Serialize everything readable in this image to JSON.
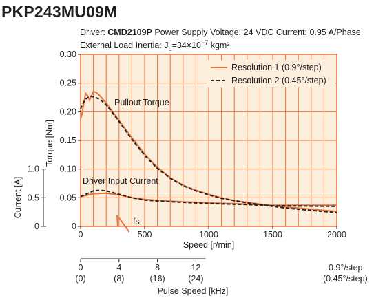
{
  "header": {
    "title": "PKP243MU09M",
    "driver_label": "Driver: ",
    "driver_model": "CMD2109P",
    "conditions": " Power Supply Voltage: 24 VDC  Current: 0.95 A/Phase",
    "inertia_prefix": "External Load Inertia: J",
    "inertia_subscript": "L",
    "inertia_value": "=34×10",
    "inertia_exponent": "−7",
    "inertia_unit": " kgm²"
  },
  "chart_data": {
    "type": "line",
    "x_axis": {
      "label": "Speed [r/min]",
      "range": [
        0,
        2000
      ],
      "ticks": [
        0,
        500,
        1000,
        1500,
        2000
      ],
      "tick_labels": [
        "0",
        "500",
        "1000",
        "1500",
        "2000"
      ]
    },
    "torque_axis": {
      "label": "Torque [Nm]",
      "range": [
        0,
        0.3
      ],
      "ticks": [
        0,
        0.05,
        0.1,
        0.15,
        0.2,
        0.25,
        0.3
      ],
      "tick_labels": [
        "0",
        "0.05",
        "0.10",
        "0.15",
        "0.20",
        "0.25",
        "0.30"
      ]
    },
    "current_axis": {
      "label": "Current [A]",
      "range": [
        0,
        1.0
      ],
      "ticks": [
        0,
        0.5,
        1.0
      ],
      "tick_labels": [
        "0",
        "0.5",
        "1.0"
      ]
    },
    "pulse_axis": {
      "label": "Pulse Speed [kHz]",
      "ticks_speed": [
        0,
        300,
        600,
        900
      ],
      "labels_res1": [
        "0",
        "4",
        "8",
        "12"
      ],
      "labels_res2": [
        "(0)",
        "(8)",
        "(16)",
        "(24)"
      ],
      "res1_note": "0.9°/step",
      "res2_note": "(0.45°/step)"
    },
    "grid": true,
    "legend": {
      "placement": "top-right",
      "entries": [
        "Resolution 1 (0.9°/step)",
        "Resolution 2 (0.45°/step)"
      ]
    },
    "series": [
      {
        "name": "Resolution 1 (0.9°/step)",
        "style": "solid",
        "color": "#e8733a",
        "pullout_torque": {
          "x": [
            0,
            10,
            25,
            40,
            55,
            70,
            85,
            100,
            120,
            150,
            200,
            250,
            300,
            400,
            500,
            600,
            700,
            800,
            900,
            1000,
            1100,
            1200,
            1300,
            1400,
            1500,
            1600,
            1700,
            1800,
            1900,
            2000
          ],
          "y": [
            0.188,
            0.195,
            0.215,
            0.232,
            0.228,
            0.22,
            0.228,
            0.235,
            0.234,
            0.228,
            0.215,
            0.2,
            0.185,
            0.155,
            0.126,
            0.103,
            0.085,
            0.072,
            0.063,
            0.056,
            0.05,
            0.045,
            0.042,
            0.039,
            0.036,
            0.034,
            0.032,
            0.03,
            0.028,
            0.026
          ]
        },
        "input_current": {
          "x": [
            0,
            100,
            200,
            300,
            400,
            500,
            700,
            1000,
            1300,
            1500,
            2000
          ],
          "y": [
            0.52,
            0.57,
            0.58,
            0.55,
            0.5,
            0.47,
            0.44,
            0.41,
            0.39,
            0.37,
            0.37
          ]
        }
      },
      {
        "name": "Resolution 2 (0.45°/step)",
        "style": "dashed",
        "color": "#231f20",
        "pullout_torque": {
          "x": [
            0,
            20,
            40,
            60,
            80,
            100,
            150,
            200,
            250,
            300,
            400,
            500,
            600,
            700,
            800,
            900,
            1000,
            1100,
            1200,
            1300,
            1400,
            1500,
            1600,
            1700,
            1800,
            1900,
            2000
          ],
          "y": [
            0.205,
            0.215,
            0.222,
            0.225,
            0.227,
            0.226,
            0.222,
            0.212,
            0.198,
            0.183,
            0.152,
            0.124,
            0.101,
            0.084,
            0.071,
            0.062,
            0.055,
            0.049,
            0.045,
            0.041,
            0.038,
            0.035,
            0.032,
            0.03,
            0.028,
            0.026,
            0.024
          ]
        },
        "input_current": {
          "x": [
            0,
            100,
            150,
            200,
            300,
            400,
            500,
            700,
            1000,
            1300,
            1500,
            2000
          ],
          "y": [
            0.52,
            0.62,
            0.63,
            0.62,
            0.56,
            0.5,
            0.46,
            0.43,
            0.4,
            0.38,
            0.36,
            0.35
          ]
        }
      }
    ],
    "fs_curve": {
      "x": [
        300,
        380
      ],
      "y": [
        0.015,
        -0.01
      ]
    },
    "annotations": {
      "pullout": "Pullout Torque",
      "current": "Driver Input Current",
      "fs": "fs"
    },
    "frame_color": "#e8733a",
    "grid_color": "#d1d3d4",
    "fill_color": "#fbeedd"
  }
}
